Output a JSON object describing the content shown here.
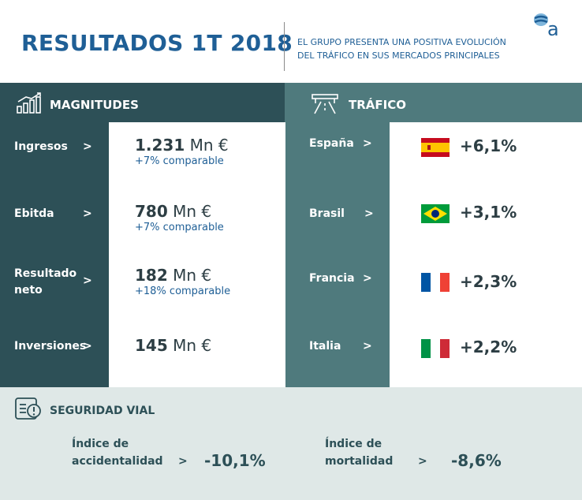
{
  "header": {
    "title": "RESULTADOS 1T 2018",
    "subtitle_line1": "EL GRUPO PRESENTA UNA POSITIVA EVOLUCIÓN",
    "subtitle_line2": "DEL TRÁFICO EN SUS MERCADOS PRINCIPALES",
    "logo_letter": "a"
  },
  "magnitudes": {
    "heading": "MAGNITUDES",
    "arrow": ">",
    "rows": [
      {
        "label_line1": "Ingresos",
        "label_line2": "",
        "value": "1.231",
        "unit": "Mn €",
        "sub": "+7% comparable"
      },
      {
        "label_line1": "Ebitda",
        "label_line2": "",
        "value": "780",
        "unit": "Mn €",
        "sub": "+7% comparable"
      },
      {
        "label_line1": "Resultado",
        "label_line2": "neto",
        "value": "182",
        "unit": "Mn €",
        "sub": "+18% comparable"
      },
      {
        "label_line1": "Inversiones",
        "label_line2": "",
        "value": "145",
        "unit": "Mn €",
        "sub": ""
      }
    ]
  },
  "trafico": {
    "heading": "TRÁFICO",
    "arrow": ">",
    "rows": [
      {
        "country": "España",
        "flag": "spain-flag",
        "pct": "+6,1%"
      },
      {
        "country": "Brasil",
        "flag": "brazil-flag",
        "pct": "+3,1%"
      },
      {
        "country": "Francia",
        "flag": "france-flag",
        "pct": "+2,3%"
      },
      {
        "country": "Italia",
        "flag": "italy-flag",
        "pct": "+2,2%"
      }
    ]
  },
  "seguridad": {
    "heading": "SEGURIDAD VIAL",
    "arrow": ">",
    "items": [
      {
        "line1": "Índice de",
        "line2": "accidentalidad",
        "value": "-10,1%"
      },
      {
        "line1": "Índice de",
        "line2": "mortalidad",
        "value": "-8,6%"
      }
    ]
  },
  "colors": {
    "title_blue": "#1f5f96",
    "dark_teal": "#2d5057",
    "mid_teal": "#4f7a7d",
    "light_teal": "#dfe8e7"
  }
}
